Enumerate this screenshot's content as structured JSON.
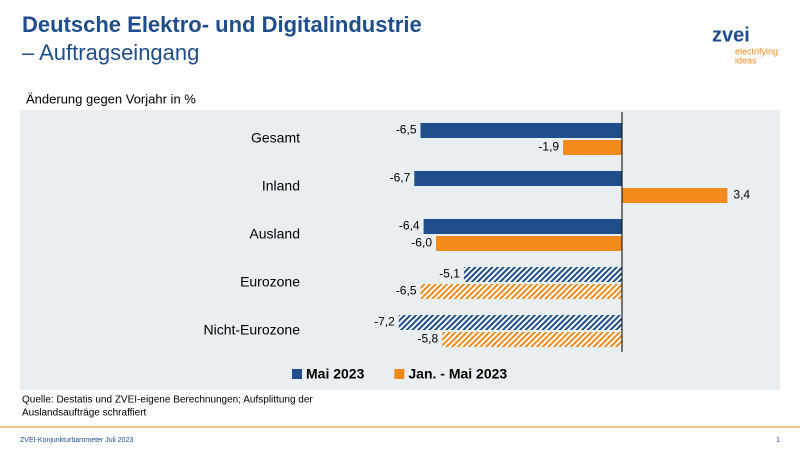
{
  "header": {
    "logo": "zvei",
    "tagline_1": "electrifying",
    "tagline_2": "ideas"
  },
  "chart_data": {
    "type": "barh",
    "title": "Deutsche Elektro- und Digitalindustrie",
    "subtitle": "– Auftragseingang",
    "axis_label": "Änderung gegen Vorjahr in %",
    "categories": [
      "Gesamt",
      "Inland",
      "Ausland",
      "Eurozone",
      "Nicht-Eurozone"
    ],
    "hatched": [
      false,
      false,
      false,
      true,
      true
    ],
    "series": [
      {
        "name": "Mai 2023",
        "color": "#1f4e8c",
        "values": [
          -6.5,
          -6.7,
          -6.4,
          -5.1,
          -7.2
        ],
        "value_labels": [
          "-6,5",
          "-6,7",
          "-6,4",
          "-5,1",
          "-7,2"
        ]
      },
      {
        "name": "Jan. - Mai 2023",
        "color": "#f28a1c",
        "values": [
          -1.9,
          3.4,
          -6.0,
          -6.5,
          -5.8
        ],
        "value_labels": [
          "-1,9",
          "3,4",
          "-6,0",
          "-6,5",
          "-5,8"
        ]
      }
    ],
    "xlim": [
      -8,
      4
    ],
    "note": [
      "Quelle: Destatis und ZVEI-eigene Berechnungen; Aufsplittung der",
      "Auslandsaufträge schraffiert"
    ]
  },
  "footer": {
    "left": "ZVEI-Konjunkturbarometer Juli 2023",
    "page": "1"
  }
}
